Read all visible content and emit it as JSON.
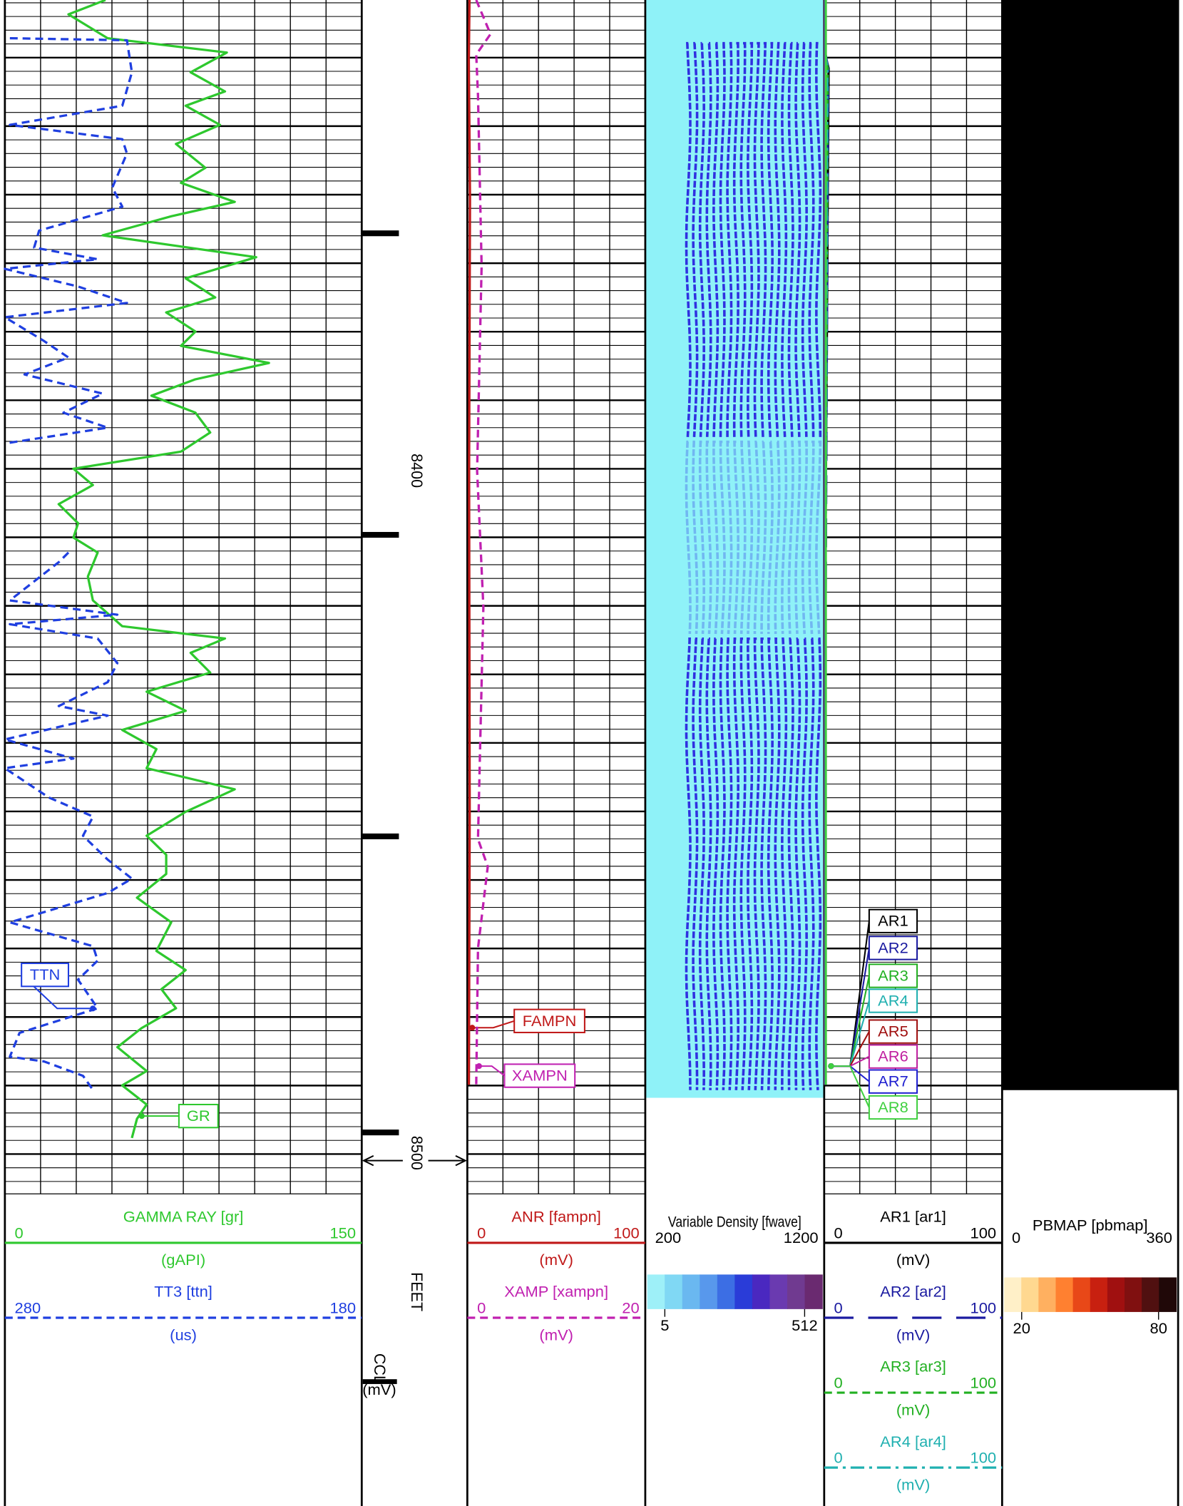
{
  "chart_data": {
    "type": "well-log",
    "ylim": [
      8331,
      8506
    ],
    "depth_labels": [
      8400,
      8500
    ],
    "depth_unit": "FEET",
    "depth_markers": [
      8365.2,
      8409.4,
      8453.6,
      8497.0
    ],
    "tracks": [
      {
        "grid_divisions": 10,
        "curves": [
          {
            "name": "GR",
            "header": "GAMMA RAY  [gr]",
            "unit": "(gAPI)",
            "color": "#2ec82e",
            "style": "solid",
            "xlim": [
              0,
              150
            ],
            "depth": [
              8331.0,
              8333.1,
              8336.6,
              8338.7,
              8341.6,
              8344.4,
              8346.5,
              8349.3,
              8352.1,
              8355.6,
              8357.8,
              8360.6,
              8362.7,
              8365.5,
              8368.7,
              8371.8,
              8374.6,
              8376.8,
              8379.6,
              8381.7,
              8384.2,
              8386.6,
              8389.0,
              8391.5,
              8394.4,
              8397.2,
              8399.7,
              8402.1,
              8404.9,
              8407.7,
              8409.8,
              8412.0,
              8415.5,
              8419.0,
              8422.8,
              8424.6,
              8426.7,
              8429.6,
              8432.4,
              8435.2,
              8438.0,
              8440.8,
              8443.6,
              8446.7,
              8450.0,
              8453.5,
              8456.3,
              8459.1,
              8462.6,
              8466.2,
              8470.4,
              8473.2,
              8476.0,
              8478.8,
              8481.7,
              8484.5,
              8488.0,
              8490.1,
              8492.9,
              8495.0,
              8497.8
            ],
            "values": [
              42.3,
              26.7,
              43.2,
              93.3,
              78.1,
              92.5,
              76.0,
              90.4,
              71.9,
              84.3,
              74.0,
              96.6,
              69.9,
              41.1,
              105.6,
              76.0,
              88.4,
              67.8,
              80.1,
              74.0,
              111.0,
              80.1,
              61.6,
              80.1,
              86.3,
              74.0,
              28.8,
              37.0,
              22.6,
              30.8,
              28.8,
              39.0,
              34.9,
              37.0,
              49.3,
              92.5,
              78.1,
              86.3,
              59.6,
              76.0,
              49.3,
              63.7,
              59.6,
              96.6,
              76.0,
              59.6,
              67.8,
              67.8,
              55.5,
              69.9,
              63.7,
              76.0,
              65.8,
              71.9,
              57.5,
              47.3,
              59.6,
              49.3,
              59.6,
              55.5,
              53.4
            ]
          },
          {
            "name": "TTN",
            "header": "TT3 [ttn]",
            "unit": "(us)",
            "color": "#1f3fe0",
            "style": "dashed",
            "xlim": [
              280,
              180
            ],
            "depth": [
              8336.6,
              8336.9,
              8341.6,
              8346.5,
              8349.3,
              8351.4,
              8353.5,
              8358.5,
              8361.3,
              8364.8,
              8367.3,
              8369.0,
              8370.4,
              8373.0,
              8375.4,
              8377.5,
              8381.0,
              8383.4,
              8385.9,
              8388.7,
              8391.5,
              8393.7,
              8396.0,
              8404.2,
              8412.0,
              8413.4,
              8419.0,
              8421.1,
              8422.5,
              8424.6,
              8428.2,
              8431.0,
              8434.5,
              8435.9,
              8439.4,
              8442.2,
              8443.6,
              8447.9,
              8450.7,
              8453.5,
              8457.0,
              8459.8,
              8461.9,
              8466.2,
              8469.7,
              8471.8,
              8474.6,
              8478.8,
              8482.4,
              8485.9,
              8486.6,
              8488.7,
              8490.8
            ],
            "values": [
              278.6,
              245.8,
              244.4,
              247.1,
              278.6,
              247.1,
              245.8,
              249.9,
              247.1,
              270.4,
              271.8,
              254.0,
              280,
              259.5,
              245.8,
              280,
              269.0,
              262.2,
              274.5,
              252.6,
              263.6,
              251.2,
              280,
              null,
              262.2,
              264.9,
              278.6,
              248.5,
              278.6,
              254.0,
              248.5,
              251.2,
              264.9,
              251.2,
              280,
              260.8,
              280,
              267.7,
              255.3,
              258.1,
              251.2,
              244.4,
              251.2,
              278.6,
              255.3,
              254.0,
              259.5,
              254.0,
              275.9,
              278.6,
              269.0,
              258.1,
              255.3
            ]
          }
        ]
      },
      {
        "curves": [
          {
            "name": "CCL",
            "unit": "(mV)"
          }
        ]
      },
      {
        "grid_divisions": 5,
        "curves": [
          {
            "name": "FAMPN",
            "header": "ANR [fampn]",
            "unit": "(mV)",
            "color": "#c01818",
            "style": "solid",
            "xlim": [
              0,
              100
            ],
            "depth": [
              8331,
              8340,
              8360,
              8400,
              8450,
              8490
            ],
            "values": [
              1.2,
              0.8,
              1.5,
              1.0,
              1.3,
              0.9
            ]
          },
          {
            "name": "XAMPN",
            "header": "XAMP [xampn]",
            "unit": "(mV)",
            "color": "#c020b0",
            "style": "dashed",
            "xlim": [
              0,
              20
            ],
            "depth": [
              8331,
              8336,
              8339,
              8345,
              8370,
              8400,
              8420,
              8454,
              8458,
              8470,
              8490
            ],
            "values": [
              1.0,
              2.6,
              1.0,
              1.2,
              1.6,
              1.1,
              1.8,
              1.2,
              2.3,
              1.2,
              1.0
            ]
          }
        ]
      },
      {
        "header": "Variable Density [fwave]",
        "xlim": [
          200,
          1200
        ],
        "colorbar": {
          "colors": [
            "#9ef0f8",
            "#80d8f4",
            "#6ab8f0",
            "#5898ec",
            "#3c6ee4",
            "#2a3cd8",
            "#4a28c0",
            "#6a3ab0",
            "#703a90",
            "#6a2a70"
          ],
          "labels": [
            5,
            512
          ]
        }
      },
      {
        "grid_divisions": 5,
        "curves": [
          {
            "name": "AR1",
            "header": "AR1 [ar1]",
            "unit": "(mV)",
            "color": "#000000",
            "style": "solid",
            "xlim": [
              0,
              100
            ],
            "depth": [
              8331,
              8339,
              8341,
              8420,
              8490
            ],
            "values": [
              0.5,
              0.5,
              2.5,
              0.5,
              0.5
            ]
          },
          {
            "name": "AR2",
            "header": "AR2 [ar2]",
            "unit": "(mV)",
            "color": "#1a1aa0",
            "style": "long-dash",
            "xlim": [
              0,
              100
            ],
            "depth": [
              8331,
              8339,
              8341,
              8420,
              8490
            ],
            "values": [
              0.8,
              0.8,
              2.2,
              0.8,
              0.8
            ]
          },
          {
            "name": "AR3",
            "header": "AR3 [ar3]",
            "unit": "(mV)",
            "color": "#22b022",
            "style": "dashed",
            "xlim": [
              0,
              100
            ],
            "depth": [
              8331,
              8339,
              8341,
              8420,
              8490
            ],
            "values": [
              0.6,
              0.6,
              2.0,
              0.6,
              0.6
            ]
          },
          {
            "name": "AR4",
            "header": "AR4 [ar4]",
            "unit": "(mV)",
            "color": "#20b0b0",
            "style": "dash-dot",
            "xlim": [
              0,
              100
            ],
            "depth": [
              8331,
              8339,
              8341,
              8420,
              8490
            ],
            "values": [
              0.7,
              0.7,
              1.8,
              0.7,
              0.7
            ]
          },
          {
            "name": "AR5",
            "color": "#a01010",
            "style": "solid",
            "xlim": [
              0,
              100
            ],
            "depth": [
              8331,
              8420,
              8490
            ],
            "values": [
              0.4,
              0.4,
              0.4
            ]
          },
          {
            "name": "AR6",
            "color": "#c020a0",
            "style": "solid",
            "xlim": [
              0,
              100
            ],
            "depth": [
              8331,
              8420,
              8490
            ],
            "values": [
              0.5,
              0.5,
              0.5
            ]
          },
          {
            "name": "AR7",
            "color": "#2020d0",
            "style": "solid",
            "xlim": [
              0,
              100
            ],
            "depth": [
              8331,
              8420,
              8490
            ],
            "values": [
              0.6,
              0.6,
              0.6
            ]
          },
          {
            "name": "AR8",
            "color": "#40d040",
            "style": "solid",
            "xlim": [
              0,
              100
            ],
            "depth": [
              8331,
              8420,
              8490
            ],
            "values": [
              0.9,
              0.9,
              0.9
            ]
          }
        ]
      },
      {
        "header": "PBMAP [pbmap]",
        "xlim": [
          0,
          360
        ],
        "colorbar": {
          "colors": [
            "#fff0c8",
            "#ffd890",
            "#ffb060",
            "#ff8030",
            "#e84818",
            "#c82010",
            "#a01010",
            "#801010",
            "#501010",
            "#200808"
          ],
          "labels": [
            20,
            80
          ]
        }
      }
    ]
  }
}
